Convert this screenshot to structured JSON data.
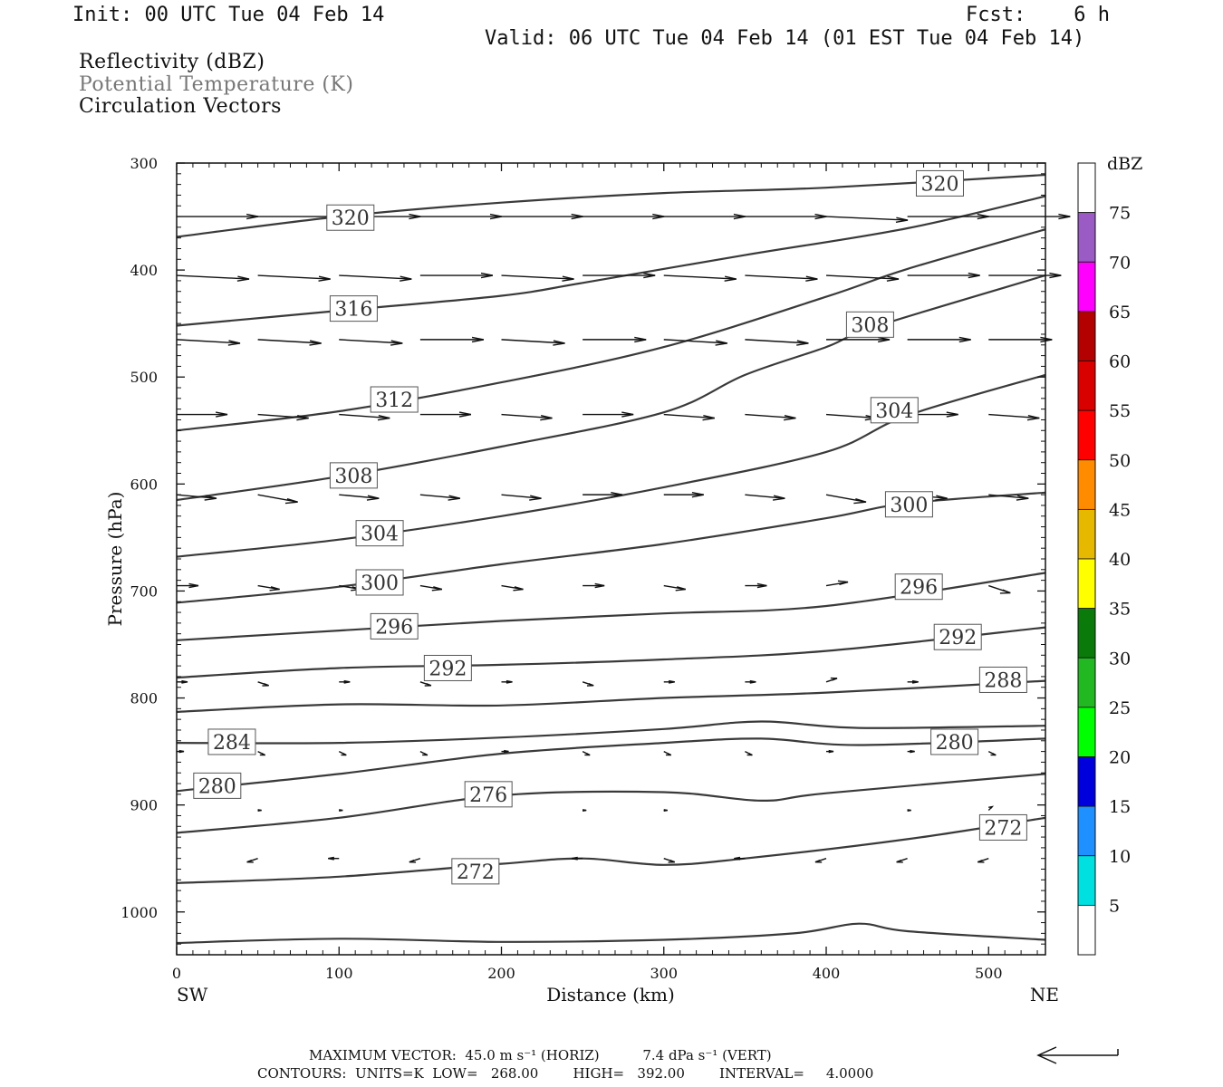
{
  "header": {
    "init": "Init: 00 UTC Tue 04 Feb 14",
    "fcst": "Fcst:    6 h",
    "valid": "Valid: 06 UTC Tue 04 Feb 14 (01 EST Tue 04 Feb 14)"
  },
  "legend": {
    "line1": "Reflectivity (dBZ)",
    "line2": "Potential Temperature (K)",
    "line3": "Circulation Vectors"
  },
  "colors": {
    "contour": "#3a3a3a",
    "vector": "#111111",
    "legend_muted": "#777777"
  },
  "chart_data": {
    "type": "line",
    "xlabel": "Distance (km)",
    "ylabel": "Pressure (hPa)",
    "xlim": [
      0,
      535
    ],
    "ylim": [
      1040,
      300
    ],
    "x_ticks": [
      "0",
      "100",
      "200",
      "300",
      "400",
      "500"
    ],
    "y_ticks": [
      "300",
      "400",
      "500",
      "600",
      "700",
      "800",
      "900",
      "1000"
    ],
    "x_end_labels": {
      "left": "SW",
      "right": "NE"
    },
    "series": [
      {
        "name": "320",
        "x": [
          0,
          100,
          200,
          300,
          400,
          535
        ],
        "y": [
          369,
          350,
          337,
          328,
          323,
          311
        ],
        "label": {
          "text": "320",
          "x": [
            107,
            470
          ],
          "y": [
            351,
            319
          ]
        }
      },
      {
        "name": "316",
        "x": [
          0,
          100,
          200,
          250,
          350,
          450,
          535
        ],
        "y": [
          452,
          438,
          424,
          412,
          386,
          361,
          331
        ],
        "label": {
          "text": "316",
          "x": [
            109
          ],
          "y": [
            436
          ]
        }
      },
      {
        "name": "312",
        "x": [
          0,
          100,
          200,
          300,
          400,
          450,
          535
        ],
        "y": [
          550,
          532,
          505,
          472,
          425,
          399,
          362
        ],
        "label": {
          "text": "312",
          "x": [
            134
          ],
          "y": [
            521
          ]
        }
      },
      {
        "name": "308",
        "x": [
          0,
          100,
          200,
          300,
          350,
          400,
          430,
          535
        ],
        "y": [
          615,
          593,
          565,
          533,
          498,
          472,
          453,
          405
        ],
        "label": {
          "text": "308",
          "x": [
            109,
            427
          ],
          "y": [
            592,
            451
          ]
        }
      },
      {
        "name": "304",
        "x": [
          0,
          100,
          200,
          300,
          400,
          450,
          535
        ],
        "y": [
          668,
          652,
          630,
          603,
          570,
          536,
          498
        ],
        "label": {
          "text": "304",
          "x": [
            125,
            442
          ],
          "y": [
            646,
            531
          ]
        }
      },
      {
        "name": "300",
        "x": [
          0,
          100,
          200,
          300,
          400,
          450,
          535
        ],
        "y": [
          711,
          696,
          675,
          656,
          632,
          618,
          608
        ],
        "label": {
          "text": "300",
          "x": [
            125,
            451
          ],
          "y": [
            692,
            619
          ]
        }
      },
      {
        "name": "296",
        "x": [
          0,
          100,
          200,
          300,
          400,
          535
        ],
        "y": [
          746,
          737,
          728,
          721,
          714,
          683
        ],
        "label": {
          "text": "296",
          "x": [
            134,
            457
          ],
          "y": [
            733,
            696
          ]
        }
      },
      {
        "name": "292",
        "x": [
          0,
          100,
          200,
          300,
          400,
          535
        ],
        "y": [
          781,
          772,
          769,
          764,
          756,
          734
        ],
        "label": {
          "text": "292",
          "x": [
            167,
            481
          ],
          "y": [
            772,
            743
          ]
        }
      },
      {
        "name": "288",
        "x": [
          0,
          100,
          200,
          300,
          400,
          535
        ],
        "y": [
          813,
          806,
          807,
          800,
          795,
          784
        ],
        "label": {
          "text": "288",
          "x": [
            509
          ],
          "y": [
            783
          ]
        }
      },
      {
        "name": "284",
        "x": [
          0,
          100,
          200,
          300,
          360,
          420,
          535
        ],
        "y": [
          842,
          842,
          837,
          829,
          822,
          828,
          826
        ],
        "label": {
          "text": "284",
          "x": [
            34
          ],
          "y": [
            841
          ]
        }
      },
      {
        "name": "280",
        "x": [
          0,
          100,
          200,
          300,
          360,
          420,
          535
        ],
        "y": [
          887,
          871,
          852,
          842,
          838,
          844,
          838
        ],
        "label": {
          "text": "280",
          "x": [
            25,
            479
          ],
          "y": [
            882,
            841
          ]
        }
      },
      {
        "name": "276",
        "x": [
          0,
          100,
          200,
          300,
          360,
          400,
          535
        ],
        "y": [
          926,
          912,
          891,
          888,
          896,
          889,
          871
        ],
        "label": {
          "text": "276",
          "x": [
            192
          ],
          "y": [
            890
          ]
        }
      },
      {
        "name": "272",
        "x": [
          0,
          100,
          200,
          250,
          300,
          350,
          450,
          535
        ],
        "y": [
          973,
          967,
          955,
          950,
          956,
          950,
          932,
          912
        ],
        "label": {
          "text": "272",
          "x": [
            184,
            509
          ],
          "y": [
            962,
            921
          ]
        }
      },
      {
        "name": "268",
        "x": [
          0,
          100,
          200,
          300,
          380,
          420,
          450,
          535
        ],
        "y": [
          1029,
          1025,
          1028,
          1026,
          1020,
          1011,
          1018,
          1026
        ],
        "label": {
          "text": "",
          "x": [],
          "y": []
        }
      }
    ],
    "vectors_note": "Circulation Vectors",
    "vectors": [
      [
        0,
        350,
        45,
        0
      ],
      [
        50,
        350,
        45,
        0
      ],
      [
        100,
        350,
        45,
        0
      ],
      [
        150,
        350,
        45,
        0
      ],
      [
        200,
        350,
        45,
        0
      ],
      [
        250,
        350,
        45,
        0
      ],
      [
        300,
        350,
        45,
        0
      ],
      [
        350,
        350,
        45,
        0
      ],
      [
        400,
        350,
        45,
        1
      ],
      [
        450,
        350,
        45,
        0
      ],
      [
        500,
        350,
        45,
        0
      ],
      [
        0,
        405,
        40,
        1
      ],
      [
        50,
        405,
        40,
        1
      ],
      [
        100,
        405,
        40,
        1
      ],
      [
        150,
        405,
        40,
        0
      ],
      [
        200,
        405,
        40,
        1
      ],
      [
        250,
        405,
        40,
        0
      ],
      [
        300,
        405,
        40,
        1
      ],
      [
        350,
        405,
        40,
        1
      ],
      [
        400,
        405,
        40,
        1
      ],
      [
        450,
        405,
        40,
        0
      ],
      [
        500,
        405,
        40,
        0
      ],
      [
        0,
        465,
        35,
        1
      ],
      [
        50,
        465,
        35,
        1
      ],
      [
        100,
        465,
        35,
        1
      ],
      [
        150,
        465,
        35,
        0
      ],
      [
        200,
        465,
        35,
        1
      ],
      [
        250,
        465,
        35,
        0
      ],
      [
        300,
        465,
        35,
        1
      ],
      [
        350,
        465,
        35,
        1
      ],
      [
        400,
        465,
        35,
        0
      ],
      [
        450,
        465,
        35,
        0
      ],
      [
        500,
        465,
        35,
        0
      ],
      [
        0,
        535,
        28,
        0
      ],
      [
        50,
        535,
        28,
        1
      ],
      [
        100,
        535,
        28,
        1
      ],
      [
        150,
        535,
        28,
        0
      ],
      [
        200,
        535,
        28,
        1
      ],
      [
        250,
        535,
        28,
        0
      ],
      [
        300,
        535,
        28,
        1
      ],
      [
        350,
        535,
        28,
        1
      ],
      [
        400,
        535,
        28,
        1
      ],
      [
        450,
        535,
        28,
        0
      ],
      [
        500,
        535,
        28,
        1
      ],
      [
        0,
        610,
        22,
        1
      ],
      [
        50,
        610,
        22,
        2
      ],
      [
        100,
        610,
        22,
        1
      ],
      [
        150,
        610,
        22,
        1
      ],
      [
        200,
        610,
        22,
        1
      ],
      [
        250,
        610,
        22,
        0
      ],
      [
        300,
        610,
        22,
        0
      ],
      [
        350,
        610,
        22,
        1
      ],
      [
        400,
        610,
        22,
        2
      ],
      [
        450,
        610,
        22,
        1
      ],
      [
        500,
        610,
        22,
        1
      ],
      [
        0,
        695,
        12,
        0
      ],
      [
        50,
        695,
        12,
        1
      ],
      [
        100,
        695,
        12,
        1
      ],
      [
        150,
        695,
        12,
        1
      ],
      [
        200,
        695,
        12,
        1
      ],
      [
        250,
        695,
        12,
        0
      ],
      [
        300,
        695,
        12,
        1
      ],
      [
        350,
        695,
        12,
        0
      ],
      [
        400,
        695,
        12,
        -1
      ],
      [
        450,
        695,
        12,
        1
      ],
      [
        500,
        695,
        12,
        2
      ],
      [
        0,
        785,
        6,
        0
      ],
      [
        50,
        785,
        6,
        1
      ],
      [
        100,
        785,
        6,
        0
      ],
      [
        150,
        785,
        6,
        1
      ],
      [
        200,
        785,
        6,
        0
      ],
      [
        250,
        785,
        6,
        1
      ],
      [
        300,
        785,
        6,
        0
      ],
      [
        350,
        785,
        6,
        0
      ],
      [
        400,
        785,
        6,
        -1
      ],
      [
        450,
        785,
        6,
        0
      ],
      [
        500,
        785,
        6,
        0
      ],
      [
        0,
        850,
        4,
        0
      ],
      [
        50,
        850,
        4,
        1
      ],
      [
        100,
        850,
        4,
        1
      ],
      [
        150,
        850,
        4,
        1
      ],
      [
        200,
        850,
        4,
        0
      ],
      [
        250,
        850,
        4,
        1
      ],
      [
        300,
        850,
        4,
        1
      ],
      [
        350,
        850,
        4,
        1
      ],
      [
        400,
        850,
        4,
        0
      ],
      [
        450,
        850,
        4,
        0
      ],
      [
        500,
        850,
        4,
        1
      ],
      [
        50,
        905,
        2,
        0
      ],
      [
        100,
        905,
        2,
        0
      ],
      [
        250,
        905,
        2,
        0
      ],
      [
        300,
        905,
        2,
        0
      ],
      [
        450,
        905,
        2,
        0
      ],
      [
        500,
        905,
        2,
        -1
      ],
      [
        50,
        950,
        -6,
        1
      ],
      [
        100,
        950,
        -6,
        0
      ],
      [
        150,
        950,
        -6,
        1
      ],
      [
        250,
        950,
        -6,
        0
      ],
      [
        300,
        950,
        6,
        1
      ],
      [
        350,
        950,
        -6,
        0
      ],
      [
        400,
        950,
        -6,
        1
      ],
      [
        450,
        950,
        -6,
        1
      ],
      [
        500,
        950,
        -6,
        1
      ]
    ],
    "colorbar": {
      "unit": "dBZ",
      "labels": [
        "75",
        "70",
        "65",
        "60",
        "55",
        "50",
        "45",
        "40",
        "35",
        "30",
        "25",
        "20",
        "15",
        "10",
        "5"
      ],
      "colors": [
        "#ffffff",
        "#9a5bc4",
        "#ff00ff",
        "#b30000",
        "#d90000",
        "#ff0000",
        "#ff8c00",
        "#e6b800",
        "#ffff00",
        "#0a7a0a",
        "#22b822",
        "#00ff00",
        "#0000dd",
        "#1e90ff",
        "#00e0e0",
        "#ffffff"
      ]
    }
  },
  "footer": {
    "line1": "MAXIMUM VECTOR:  45.0 m s⁻¹ (HORIZ)          7.4 dPa s⁻¹ (VERT)",
    "line2": "CONTOURS:  UNITS=K  LOW=   268.00        HIGH=   392.00        INTERVAL=     4.0000"
  }
}
